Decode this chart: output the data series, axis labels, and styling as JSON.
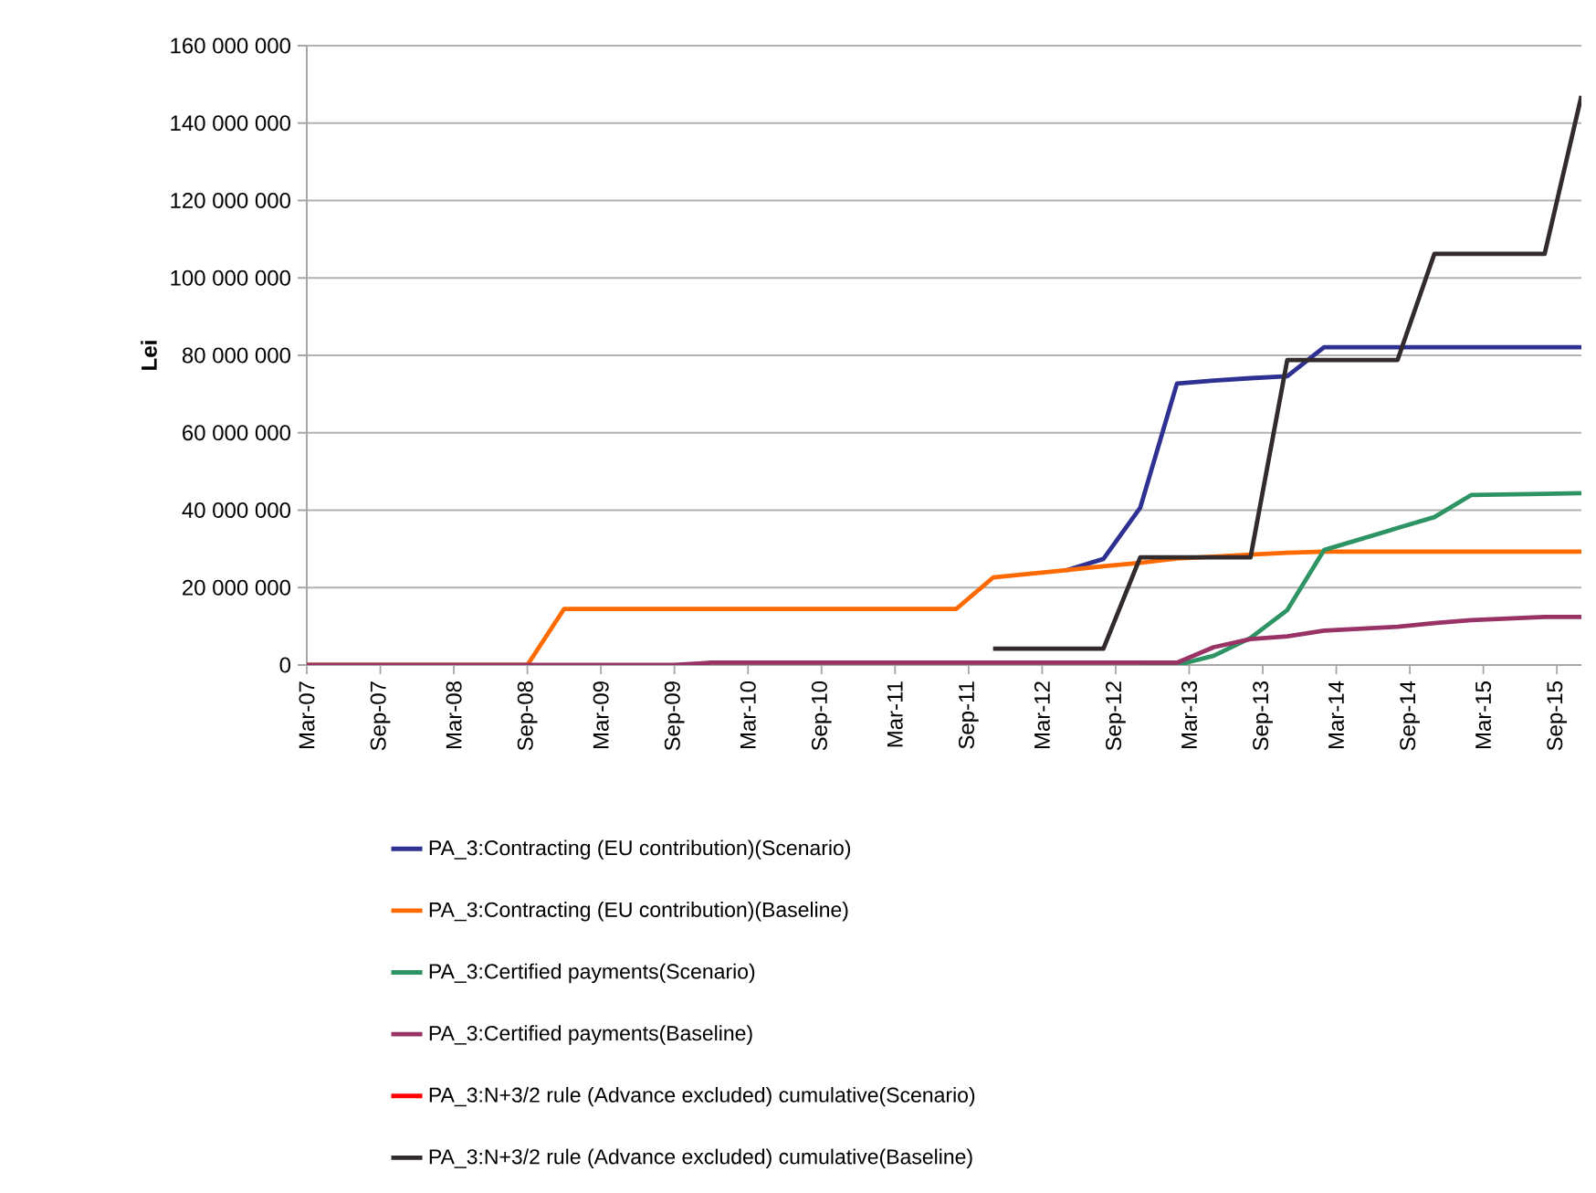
{
  "chart_data": {
    "type": "line",
    "ylabel": "Lei",
    "x": [
      "2007-03",
      "2008-09",
      "2008-12",
      "2009-09",
      "2009-12",
      "2011-08",
      "2011-11",
      "2012-05",
      "2012-08",
      "2012-11",
      "2013-02",
      "2013-05",
      "2013-08",
      "2013-11",
      "2014-02",
      "2014-08",
      "2014-11",
      "2015-02",
      "2015-08",
      "2015-11"
    ],
    "series": [
      {
        "name": "PA_3:Contracting (EU contribution)(Scenario)",
        "color": "#2e3192",
        "values": [
          null,
          null,
          null,
          null,
          null,
          null,
          null,
          24500000,
          27400000,
          40600000,
          72700000,
          73500000,
          74100000,
          74600000,
          82100000,
          82100000,
          82100000,
          82100000,
          82100000,
          82100000
        ]
      },
      {
        "name": "PA_3:Contracting (EU contribution)(Baseline)",
        "color": "#ff6a00",
        "values": [
          0,
          0,
          14500000,
          14500000,
          14500000,
          14500000,
          22600000,
          24500000,
          25500000,
          26400000,
          27500000,
          28000000,
          28500000,
          29000000,
          29300000,
          29300000,
          29300000,
          29300000,
          29300000,
          29300000
        ]
      },
      {
        "name": "PA_3:Certified payments(Scenario)",
        "color": "#2e9464",
        "values": [
          null,
          null,
          null,
          null,
          null,
          null,
          null,
          null,
          null,
          0,
          0,
          2400000,
          7000000,
          14200000,
          29700000,
          35400000,
          38200000,
          43900000,
          44200000,
          44400000
        ]
      },
      {
        "name": "PA_3:Certified payments(Baseline)",
        "color": "#993366",
        "values": [
          0,
          0,
          0,
          0,
          600000,
          600000,
          600000,
          600000,
          600000,
          600000,
          600000,
          4600000,
          6700000,
          7400000,
          8900000,
          9900000,
          10800000,
          11600000,
          12400000,
          12400000
        ]
      },
      {
        "name": "PA_3:N+3/2 rule (Advance excluded) cumulative(Scenario)",
        "color": "#ff0000",
        "values": [
          null,
          null,
          null,
          null,
          null,
          null,
          null,
          null,
          null,
          null,
          null,
          null,
          null,
          null,
          null,
          null,
          null,
          null,
          null,
          null
        ]
      },
      {
        "name": "PA_3:N+3/2 rule (Advance excluded) cumulative(Baseline)",
        "color": "#312b2b",
        "values": [
          null,
          null,
          null,
          null,
          null,
          null,
          4200000,
          4200000,
          4200000,
          27800000,
          27800000,
          27800000,
          27800000,
          78800000,
          78800000,
          78800000,
          106200000,
          106200000,
          106200000,
          147000000
        ]
      }
    ],
    "xlim": [
      "2007-03",
      "2015-11"
    ],
    "xticks": [
      {
        "value": "2007-03",
        "label": "Mar-07"
      },
      {
        "value": "2007-09",
        "label": "Sep-07"
      },
      {
        "value": "2008-03",
        "label": "Mar-08"
      },
      {
        "value": "2008-09",
        "label": "Sep-08"
      },
      {
        "value": "2009-03",
        "label": "Mar-09"
      },
      {
        "value": "2009-09",
        "label": "Sep-09"
      },
      {
        "value": "2010-03",
        "label": "Mar-10"
      },
      {
        "value": "2010-09",
        "label": "Sep-10"
      },
      {
        "value": "2011-03",
        "label": "Mar-11"
      },
      {
        "value": "2011-09",
        "label": "Sep-11"
      },
      {
        "value": "2012-03",
        "label": "Mar-12"
      },
      {
        "value": "2012-09",
        "label": "Sep-12"
      },
      {
        "value": "2013-03",
        "label": "Mar-13"
      },
      {
        "value": "2013-09",
        "label": "Sep-13"
      },
      {
        "value": "2014-03",
        "label": "Mar-14"
      },
      {
        "value": "2014-09",
        "label": "Sep-14"
      },
      {
        "value": "2015-03",
        "label": "Mar-15"
      },
      {
        "value": "2015-09",
        "label": "Sep-15"
      }
    ],
    "ylim": [
      0,
      160000000
    ],
    "yticks": [
      0,
      {
        "value": 20000000,
        "label": "20 000 000"
      },
      {
        "value": 40000000,
        "label": "40 000 000"
      },
      {
        "value": 60000000,
        "label": "60 000 000"
      },
      {
        "value": 80000000,
        "label": "80 000 000"
      },
      {
        "value": 100000000,
        "label": "100 000 000"
      },
      {
        "value": 120000000,
        "label": "120 000 000"
      },
      {
        "value": 140000000,
        "label": "140 000 000"
      },
      {
        "value": 160000000,
        "label": "160 000 000"
      }
    ],
    "grid": "y",
    "legend": "bottom",
    "marker": "none",
    "line_style": "solid"
  }
}
